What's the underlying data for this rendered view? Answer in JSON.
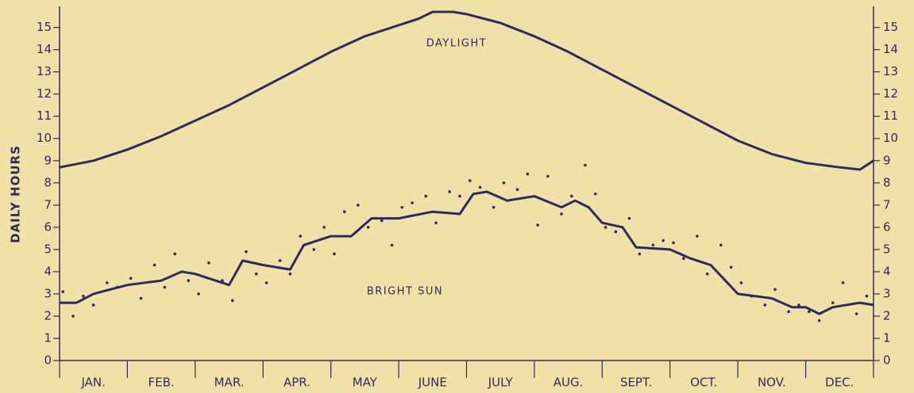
{
  "chart_data": {
    "type": "line",
    "ylabel": "DAILY HOURS",
    "annotations": [
      "DAYLIGHT",
      "BRIGHT SUN"
    ],
    "categories": [
      "JAN.",
      "FEB.",
      "MAR.",
      "APR.",
      "MAY",
      "JUNE",
      "JULY",
      "AUG.",
      "SEPT.",
      "OCT.",
      "NOV.",
      "DEC."
    ],
    "xlim": [
      0,
      12
    ],
    "ylim": [
      0,
      15.7
    ],
    "yticks": [
      0,
      1,
      2,
      3,
      4,
      5,
      6,
      7,
      8,
      9,
      10,
      11,
      12,
      13,
      14,
      15
    ],
    "color": "#2d2b5e",
    "series": [
      {
        "type": "line",
        "x": [
          0,
          0.5,
          1,
          1.5,
          2,
          2.5,
          3,
          3.5,
          4,
          4.5,
          5,
          5.3,
          5.5,
          5.8,
          6,
          6.5,
          7,
          7.5,
          8,
          8.5,
          9,
          9.5,
          10,
          10.5,
          11,
          11.5,
          11.8,
          12
        ],
        "values": [
          8.7,
          9.0,
          9.5,
          10.1,
          10.8,
          11.5,
          12.3,
          13.1,
          13.9,
          14.6,
          15.1,
          15.4,
          15.7,
          15.7,
          15.6,
          15.2,
          14.6,
          13.9,
          13.1,
          12.3,
          11.5,
          10.7,
          9.9,
          9.3,
          8.9,
          8.7,
          8.6,
          9.0
        ]
      },
      {
        "type": "line",
        "x": [
          0,
          0.25,
          0.5,
          1,
          1.5,
          1.8,
          2,
          2.5,
          2.7,
          3,
          3.4,
          3.6,
          4,
          4.3,
          4.6,
          5,
          5.5,
          5.9,
          6.1,
          6.3,
          6.6,
          7,
          7.4,
          7.6,
          7.8,
          8,
          8.3,
          8.5,
          9,
          9.3,
          9.6,
          10,
          10.5,
          10.8,
          11,
          11.2,
          11.4,
          11.8,
          12
        ],
        "values": [
          2.6,
          2.6,
          3.0,
          3.4,
          3.6,
          4.0,
          3.9,
          3.4,
          4.5,
          4.3,
          4.1,
          5.2,
          5.6,
          5.6,
          6.4,
          6.4,
          6.7,
          6.6,
          7.5,
          7.6,
          7.2,
          7.4,
          6.9,
          7.2,
          6.9,
          6.2,
          6.0,
          5.1,
          5.0,
          4.6,
          4.3,
          3.0,
          2.8,
          2.4,
          2.4,
          2.1,
          2.4,
          2.6,
          2.5
        ]
      },
      {
        "type": "scatter",
        "x": [
          0.05,
          0.2,
          0.35,
          0.5,
          0.7,
          0.85,
          1.05,
          1.2,
          1.4,
          1.55,
          1.7,
          1.9,
          2.05,
          2.2,
          2.4,
          2.55,
          2.75,
          2.9,
          3.05,
          3.25,
          3.4,
          3.55,
          3.75,
          3.9,
          4.05,
          4.2,
          4.4,
          4.55,
          4.75,
          4.9,
          5.05,
          5.2,
          5.4,
          5.55,
          5.75,
          5.9,
          6.05,
          6.2,
          6.4,
          6.55,
          6.75,
          6.9,
          7.05,
          7.2,
          7.4,
          7.55,
          7.75,
          7.9,
          8.05,
          8.2,
          8.4,
          8.55,
          8.75,
          8.9,
          9.05,
          9.2,
          9.4,
          9.55,
          9.75,
          9.9,
          10.05,
          10.2,
          10.4,
          10.55,
          10.75,
          10.9,
          11.05,
          11.2,
          11.4,
          11.55,
          11.75,
          11.9
        ],
        "values": [
          3.1,
          2.0,
          2.9,
          2.5,
          3.5,
          3.3,
          3.7,
          2.8,
          4.3,
          3.3,
          4.8,
          3.6,
          3.0,
          4.4,
          3.6,
          2.7,
          4.9,
          3.9,
          3.5,
          4.5,
          3.9,
          5.6,
          5.0,
          6.0,
          4.8,
          6.7,
          7.0,
          6.0,
          6.3,
          5.2,
          6.9,
          7.1,
          7.4,
          6.2,
          7.6,
          7.4,
          8.1,
          7.8,
          6.9,
          8.0,
          7.7,
          8.4,
          6.1,
          8.3,
          6.6,
          7.4,
          8.8,
          7.5,
          6.0,
          5.8,
          6.4,
          4.8,
          5.2,
          5.4,
          5.3,
          4.6,
          5.6,
          3.9,
          5.2,
          4.2,
          3.5,
          2.9,
          2.5,
          3.2,
          2.2,
          2.5,
          2.2,
          1.8,
          2.6,
          3.5,
          2.1,
          2.9
        ]
      }
    ]
  }
}
